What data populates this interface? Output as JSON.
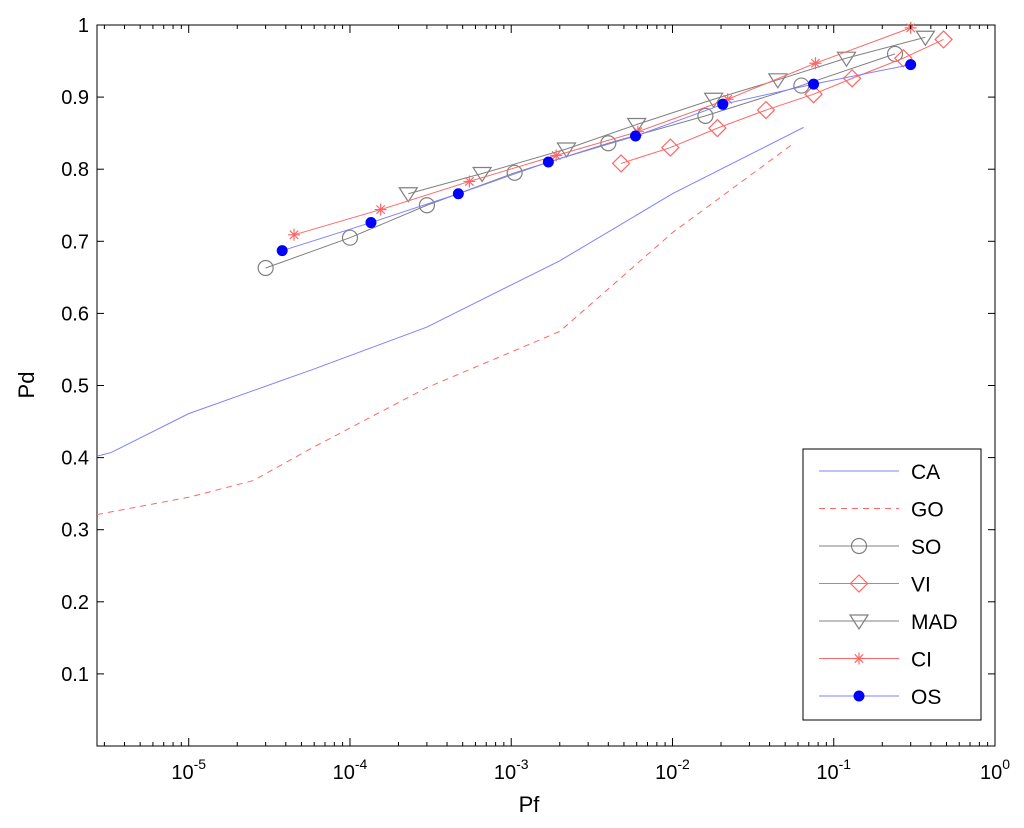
{
  "chart_data": {
    "type": "line",
    "xlabel": "Pf",
    "ylabel": "Pd",
    "xscale": "log",
    "xlim": [
      2.7e-06,
      1
    ],
    "ylim": [
      0,
      1
    ],
    "x_ticks": [
      {
        "value": 1e-05,
        "base": "10",
        "exp": "-5"
      },
      {
        "value": 0.0001,
        "base": "10",
        "exp": "-4"
      },
      {
        "value": 0.001,
        "base": "10",
        "exp": "-3"
      },
      {
        "value": 0.01,
        "base": "10",
        "exp": "-2"
      },
      {
        "value": 0.1,
        "base": "10",
        "exp": "-1"
      },
      {
        "value": 1,
        "base": "10",
        "exp": "0"
      }
    ],
    "y_ticks": [
      {
        "value": 0.1,
        "label": "0.1"
      },
      {
        "value": 0.2,
        "label": "0.2"
      },
      {
        "value": 0.3,
        "label": "0.3"
      },
      {
        "value": 0.4,
        "label": "0.4"
      },
      {
        "value": 0.5,
        "label": "0.5"
      },
      {
        "value": 0.6,
        "label": "0.6"
      },
      {
        "value": 0.7,
        "label": "0.7"
      },
      {
        "value": 0.8,
        "label": "0.8"
      },
      {
        "value": 0.9,
        "label": "0.9"
      },
      {
        "value": 1.0,
        "label": "1"
      }
    ],
    "grid": false,
    "legend_position": "bottom-right",
    "series": [
      {
        "name": "CA",
        "color": "#8080ff",
        "dash": "solid",
        "marker": "none",
        "x": [
          2.7e-06,
          3.3e-06,
          1e-05,
          6e-05,
          0.0003,
          0.002,
          0.01,
          0.065
        ],
        "y": [
          0.402,
          0.407,
          0.461,
          0.523,
          0.581,
          0.673,
          0.766,
          0.858
        ]
      },
      {
        "name": "GO",
        "color": "#ff6666",
        "dash": "dashed",
        "marker": "none",
        "x": [
          2.7e-06,
          1e-05,
          2.5e-05,
          6e-05,
          0.0003,
          0.002,
          0.01,
          0.055
        ],
        "y": [
          0.321,
          0.345,
          0.368,
          0.415,
          0.497,
          0.575,
          0.712,
          0.834
        ]
      },
      {
        "name": "SO",
        "color": "#808080",
        "dash": "solid",
        "marker": "circle",
        "x": [
          3e-05,
          0.0001,
          0.0003,
          0.00105,
          0.004,
          0.016,
          0.063,
          0.24
        ],
        "y": [
          0.663,
          0.705,
          0.75,
          0.795,
          0.836,
          0.874,
          0.916,
          0.96
        ]
      },
      {
        "name": "VI",
        "color": "#ff6666",
        "dash": "solid",
        "marker": "diamond",
        "x": [
          0.0048,
          0.0097,
          0.019,
          0.038,
          0.075,
          0.13,
          0.27,
          0.48
        ],
        "y": [
          0.808,
          0.83,
          0.857,
          0.882,
          0.904,
          0.926,
          0.954,
          0.98
        ]
      },
      {
        "name": "MAD",
        "color": "#808080",
        "dash": "solid",
        "marker": "triangle-down",
        "x": [
          0.00023,
          0.00066,
          0.0022,
          0.006,
          0.018,
          0.045,
          0.12,
          0.37
        ],
        "y": [
          0.766,
          0.794,
          0.828,
          0.862,
          0.897,
          0.924,
          0.954,
          0.983
        ]
      },
      {
        "name": "CI",
        "color": "#ff6666",
        "dash": "solid",
        "marker": "asterisk",
        "x": [
          4.5e-05,
          0.000155,
          0.00055,
          0.0019,
          0.0061,
          0.022,
          0.077,
          0.3
        ],
        "y": [
          0.709,
          0.744,
          0.783,
          0.819,
          0.852,
          0.897,
          0.947,
          0.996
        ]
      },
      {
        "name": "OS",
        "color": "#0000ff",
        "dash": "solid",
        "marker": "dot",
        "line_color": "#8080ff",
        "x": [
          3.8e-05,
          0.000135,
          0.00047,
          0.0017,
          0.0059,
          0.0205,
          0.075,
          0.3
        ],
        "y": [
          0.687,
          0.726,
          0.766,
          0.81,
          0.846,
          0.89,
          0.918,
          0.945
        ]
      }
    ]
  }
}
